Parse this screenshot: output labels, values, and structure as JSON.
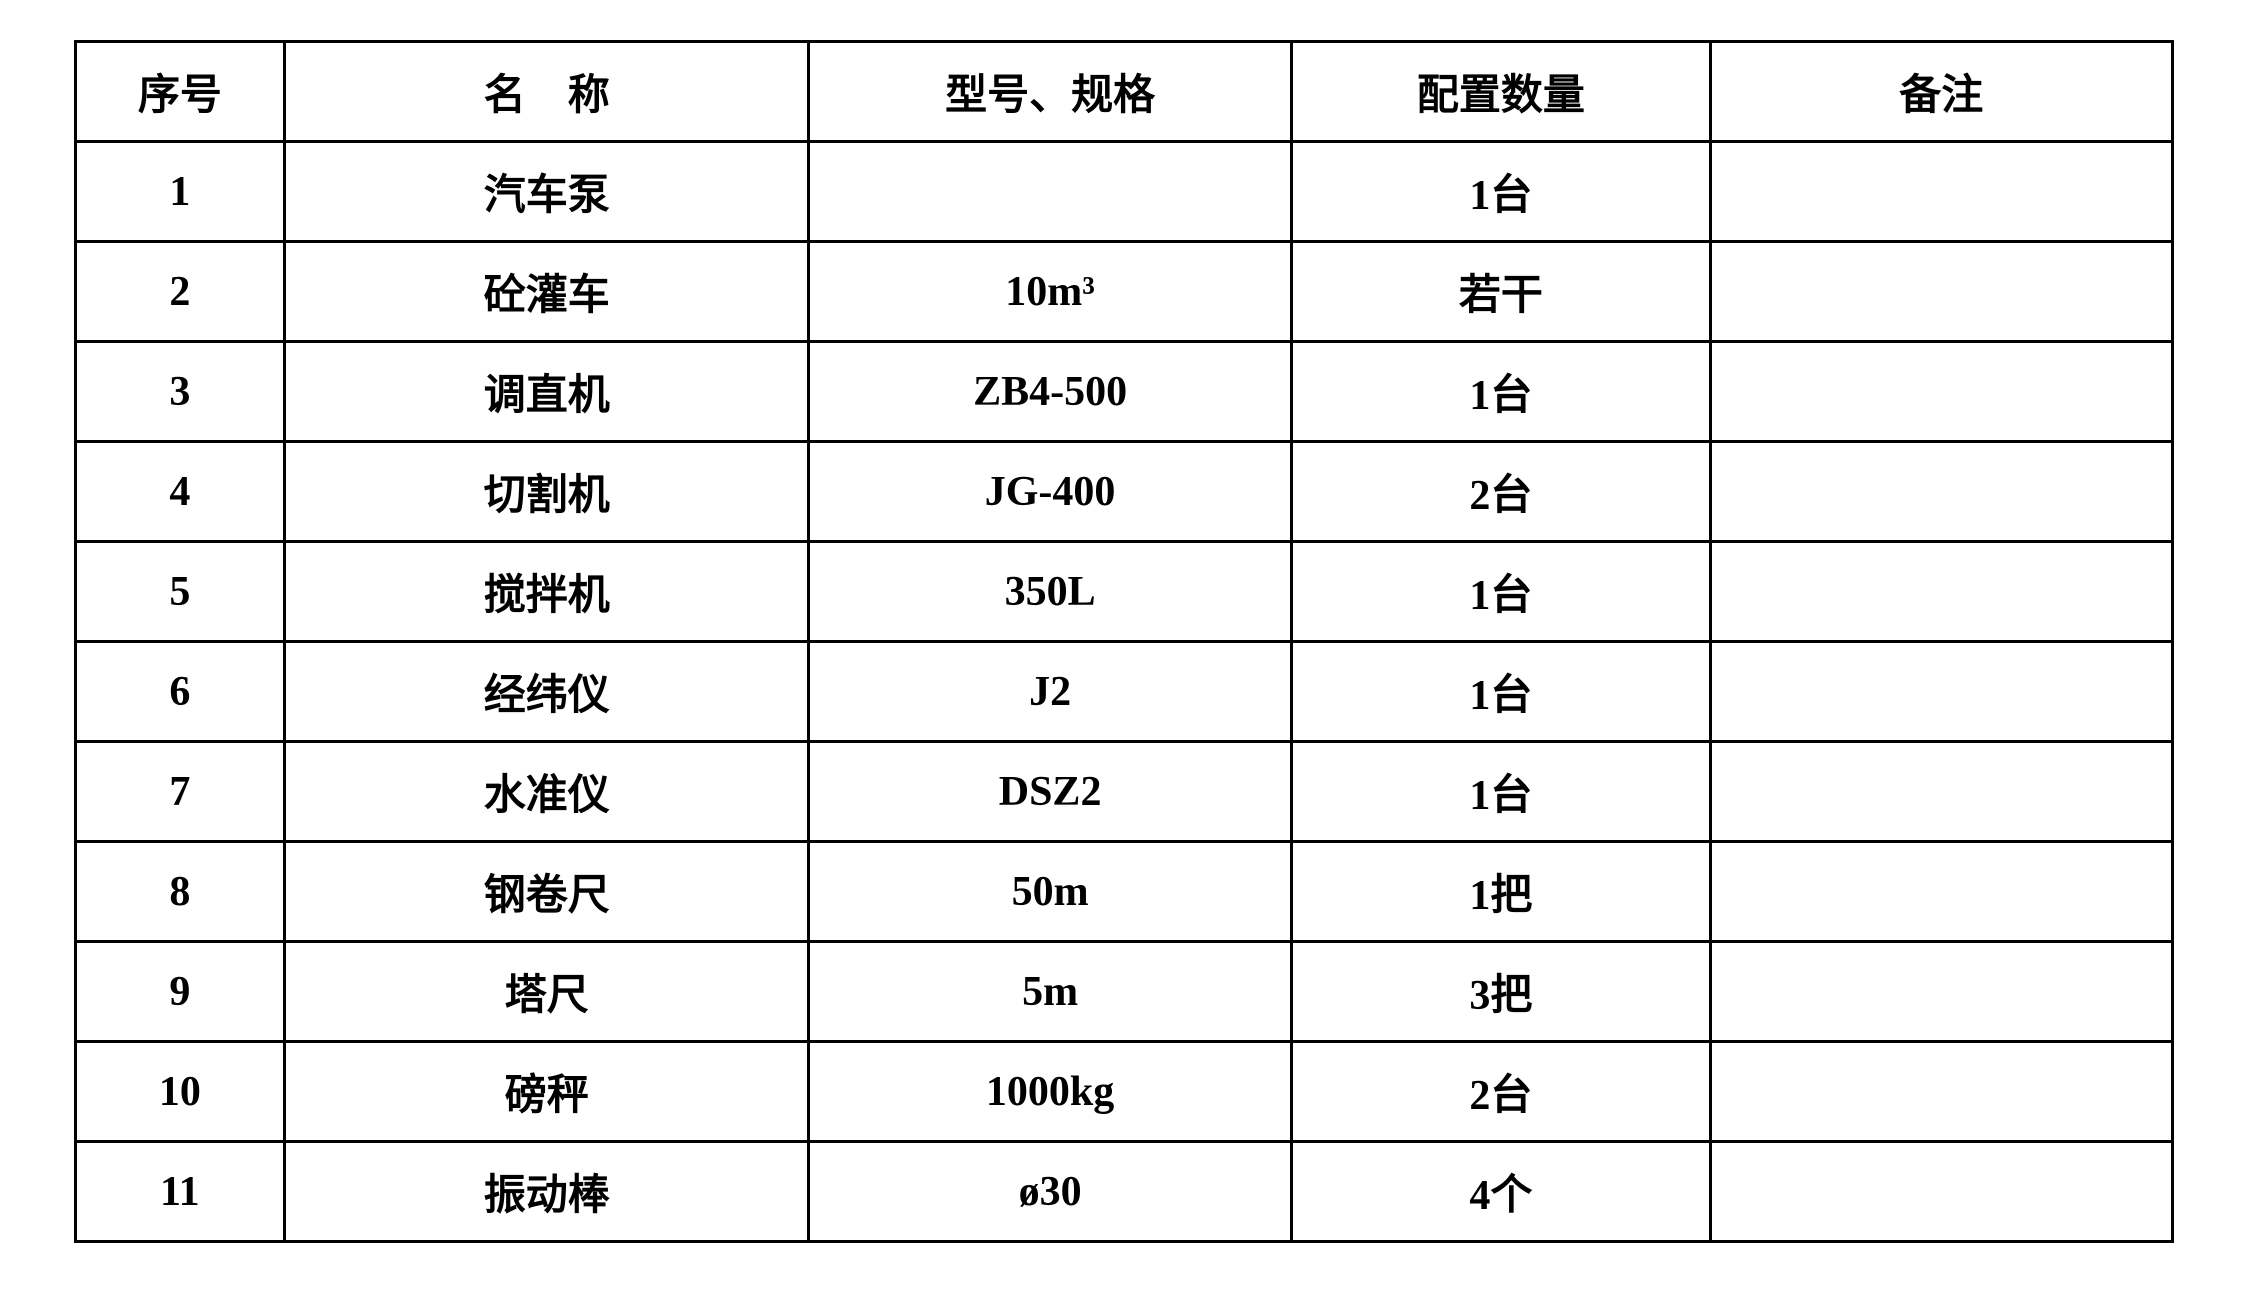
{
  "table": {
    "type": "table",
    "background_color": "#ffffff",
    "border_color": "#000000",
    "border_width": 3,
    "text_color": "#000000",
    "font_size": 42,
    "font_weight": "bold",
    "font_family": "SimSun",
    "columns": [
      {
        "key": "seq",
        "label": "序号",
        "width_pct": 10,
        "align": "center"
      },
      {
        "key": "name",
        "label": "名　称",
        "width_pct": 25,
        "align": "center"
      },
      {
        "key": "spec",
        "label": "型号、规格",
        "width_pct": 23,
        "align": "center"
      },
      {
        "key": "qty",
        "label": "配置数量",
        "width_pct": 20,
        "align": "center"
      },
      {
        "key": "remark",
        "label": "备注",
        "width_pct": 22,
        "align": "center"
      }
    ],
    "rows": [
      {
        "seq": "1",
        "name": "汽车泵",
        "spec": "",
        "qty": "1台",
        "remark": ""
      },
      {
        "seq": "2",
        "name": "砼灌车",
        "spec": "10m³",
        "qty": "若干",
        "remark": ""
      },
      {
        "seq": "3",
        "name": "调直机",
        "spec": "ZB4-500",
        "qty": "1台",
        "remark": ""
      },
      {
        "seq": "4",
        "name": "切割机",
        "spec": "JG-400",
        "qty": "2台",
        "remark": ""
      },
      {
        "seq": "5",
        "name": "搅拌机",
        "spec": "350L",
        "qty": "1台",
        "remark": ""
      },
      {
        "seq": "6",
        "name": "经纬仪",
        "spec": "J2",
        "qty": "1台",
        "remark": ""
      },
      {
        "seq": "7",
        "name": "水准仪",
        "spec": "DSZ2",
        "qty": "1台",
        "remark": ""
      },
      {
        "seq": "8",
        "name": "钢卷尺",
        "spec": "50m",
        "qty": "1把",
        "remark": ""
      },
      {
        "seq": "9",
        "name": "塔尺",
        "spec": "5m",
        "qty": "3把",
        "remark": ""
      },
      {
        "seq": "10",
        "name": "磅秤",
        "spec": "1000kg",
        "qty": "2台",
        "remark": ""
      },
      {
        "seq": "11",
        "name": "振动棒",
        "spec": "ø30",
        "qty": "4个",
        "remark": ""
      }
    ]
  }
}
